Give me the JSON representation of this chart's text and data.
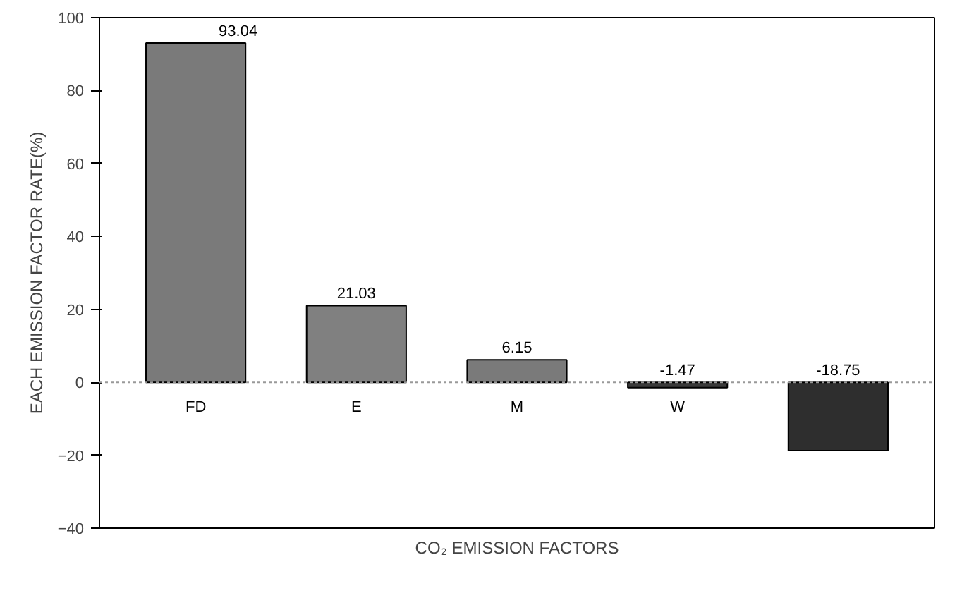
{
  "chart_data": {
    "type": "bar",
    "xlabel": "CO₂ EMISSION FACTORS",
    "ylabel": "EACH EMISSION FACTOR RATE(%)",
    "categories": [
      "FD",
      "E",
      "M",
      "W",
      null
    ],
    "values": [
      93.04,
      21.03,
      6.15,
      -1.47,
      -18.75
    ],
    "colors": [
      "#7a7a7a",
      "#808080",
      "#7a7a7a",
      "#3a3a3a",
      "#2e2e2e"
    ],
    "data_labels": true,
    "ylim": [
      -40,
      100
    ],
    "yticks": [
      -40,
      -20,
      0,
      20,
      40,
      60,
      80,
      100
    ],
    "ref_lines": [
      {
        "axis": "y",
        "value": 0,
        "color": "#999999",
        "line_style": "dotted"
      }
    ]
  }
}
